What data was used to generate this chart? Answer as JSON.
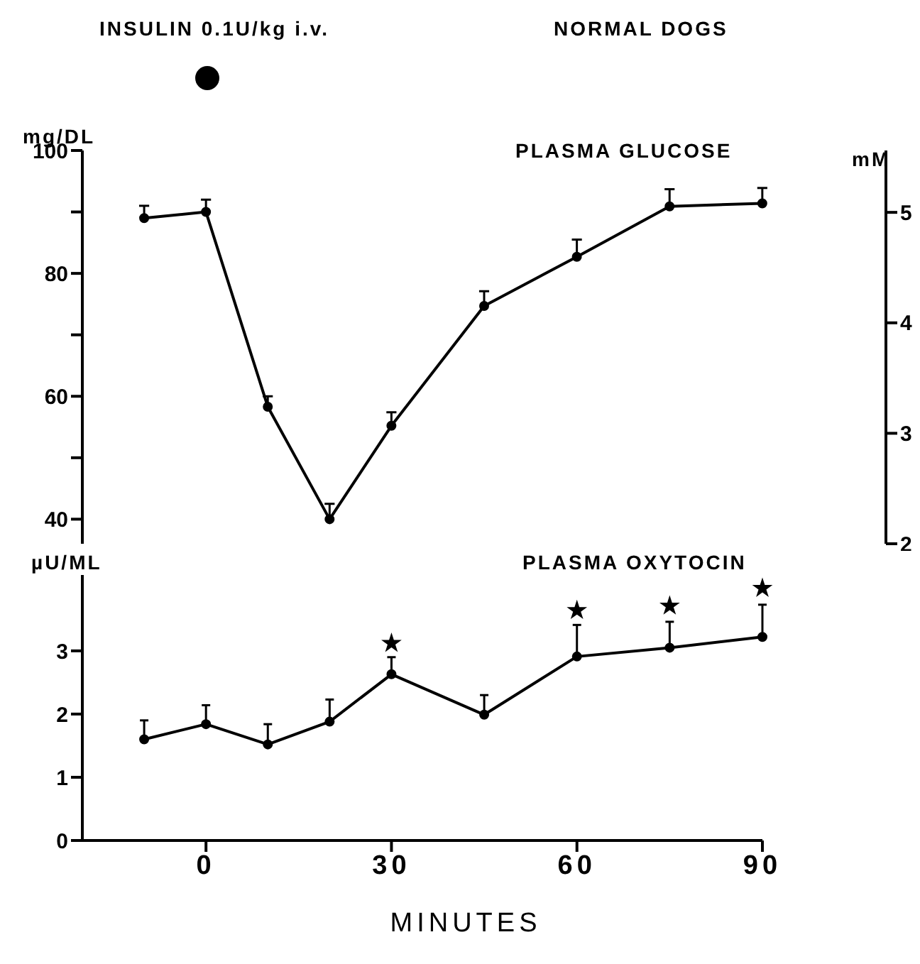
{
  "chart_data": [
    {
      "type": "line",
      "title": "NORMAL DOGS",
      "annotations": [
        "INSULIN 0.1U/kg i.v."
      ],
      "ylabel": "mg/DL",
      "y2label": "mM",
      "x": [
        -10,
        0,
        10,
        20,
        30,
        45,
        60,
        75,
        90
      ],
      "xlim": [
        -20,
        110
      ],
      "xticks": [
        0,
        30,
        60,
        90
      ],
      "ylim": [
        36,
        100
      ],
      "yticks": [
        40,
        {
          "value": 50,
          "label": null
        },
        60,
        {
          "value": 70,
          "label": null
        },
        80,
        {
          "value": 90,
          "label": null
        },
        100
      ],
      "y2lim": [
        2,
        5.56
      ],
      "y2ticks": [
        2,
        3,
        4,
        5
      ],
      "tick_labels": "y",
      "marker": "circle",
      "line_style": "solid",
      "series": [
        {
          "name": "PLASMA GLUCOSE",
          "color": "#000000",
          "values": [
            89,
            90,
            58.3,
            40,
            55.2,
            74.7,
            82.7,
            90.9,
            91.4
          ],
          "errors": [
            [
              89,
              91
            ],
            [
              90,
              92
            ],
            [
              58.3,
              60
            ],
            [
              40,
              42.5
            ],
            [
              55.2,
              57.4
            ],
            [
              74.7,
              77.1
            ],
            [
              82.7,
              85.5
            ],
            [
              90.9,
              93.7
            ],
            [
              91.4,
              93.9
            ]
          ]
        }
      ]
    },
    {
      "type": "line",
      "xlabel": "MINUTES",
      "ylabel": "µU/ML",
      "x": [
        -10,
        0,
        10,
        20,
        30,
        45,
        60,
        75,
        90
      ],
      "xlim": [
        -20,
        90
      ],
      "xticks": [
        0,
        30,
        60,
        90
      ],
      "ylim": [
        0,
        4.2
      ],
      "yticks": [
        0,
        1,
        2,
        3
      ],
      "marker": "circle",
      "line_style": "solid",
      "series": [
        {
          "name": "PLASMA OXYTOCIN",
          "color": "#000000",
          "values": [
            1.6,
            1.84,
            1.52,
            1.88,
            2.63,
            1.99,
            2.91,
            3.05,
            3.22
          ],
          "errors": [
            [
              1.6,
              1.9
            ],
            [
              1.84,
              2.14
            ],
            [
              1.52,
              1.84
            ],
            [
              1.88,
              2.23
            ],
            [
              2.63,
              2.9
            ],
            [
              1.99,
              2.3
            ],
            [
              2.91,
              3.41
            ],
            [
              3.05,
              3.46
            ],
            [
              3.22,
              3.73
            ]
          ]
        },
        {
          "type": "scatter",
          "marker": "star",
          "color": "#000000",
          "x": [
            30,
            60,
            75,
            90
          ],
          "values": [
            3.12,
            3.64,
            3.71,
            3.99
          ]
        }
      ]
    }
  ]
}
